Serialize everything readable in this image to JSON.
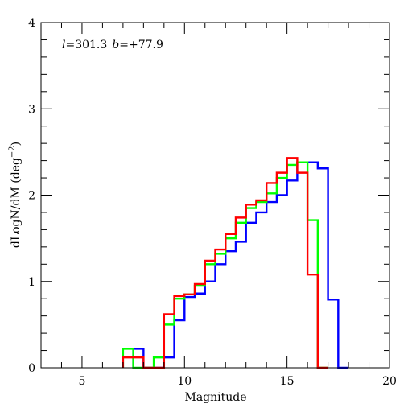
{
  "chart_data": {
    "type": "step",
    "title": "",
    "xlabel": "Magnitude",
    "ylabel_main": "dLogN/dM (deg",
    "ylabel_sup": "−2",
    "ylabel_close": ")",
    "annotation": {
      "l_sym": "l",
      "l_val": "=301.3",
      "b_sym": "b",
      "b_val": "=+77.9"
    },
    "xlim": [
      3,
      20
    ],
    "ylim": [
      0,
      4
    ],
    "xticks": [
      5,
      10,
      15,
      20
    ],
    "xtick_labels": [
      "5",
      "10",
      "15",
      "20"
    ],
    "yticks": [
      0,
      1,
      2,
      3,
      4
    ],
    "ytick_labels": [
      "0",
      "1",
      "2",
      "3",
      "4"
    ],
    "bin_width": 0.5,
    "series": [
      {
        "color": "#0000ff",
        "line_width": 2.4,
        "x": [
          7.5,
          8.0,
          8.5,
          9.0,
          9.5,
          10.0,
          10.5,
          11.0,
          11.5,
          12.0,
          12.5,
          13.0,
          13.5,
          14.0,
          14.5,
          15.0,
          15.5,
          16.0,
          16.5,
          17.0,
          17.5
        ],
        "y": [
          0.22,
          0.0,
          0.0,
          0.12,
          0.55,
          0.82,
          0.86,
          1.0,
          1.2,
          1.35,
          1.46,
          1.68,
          1.8,
          1.92,
          2.0,
          2.17,
          2.38,
          2.38,
          2.31,
          0.79,
          0.0
        ]
      },
      {
        "color": "#00ff00",
        "line_width": 2.4,
        "x": [
          7.0,
          7.5,
          8.0,
          8.5,
          9.0,
          9.5,
          10.0,
          10.5,
          11.0,
          11.5,
          12.0,
          12.5,
          13.0,
          13.5,
          14.0,
          14.5,
          15.0,
          15.5,
          16.0,
          16.5
        ],
        "y": [
          0.22,
          0.0,
          0.0,
          0.12,
          0.5,
          0.8,
          0.85,
          0.95,
          1.2,
          1.32,
          1.5,
          1.68,
          1.85,
          1.92,
          2.02,
          2.2,
          2.35,
          2.38,
          1.71,
          0.0
        ]
      },
      {
        "color": "#ff0000",
        "line_width": 2.4,
        "x": [
          7.0,
          7.5,
          8.0,
          8.5,
          9.0,
          9.5,
          10.0,
          10.5,
          11.0,
          11.5,
          12.0,
          12.5,
          13.0,
          13.5,
          14.0,
          14.5,
          15.0,
          15.5,
          16.0,
          16.5
        ],
        "y": [
          0.12,
          0.12,
          0.0,
          0.0,
          0.62,
          0.83,
          0.85,
          0.97,
          1.24,
          1.37,
          1.55,
          1.74,
          1.89,
          1.94,
          2.14,
          2.26,
          2.43,
          2.26,
          1.08,
          0.0
        ]
      }
    ]
  }
}
